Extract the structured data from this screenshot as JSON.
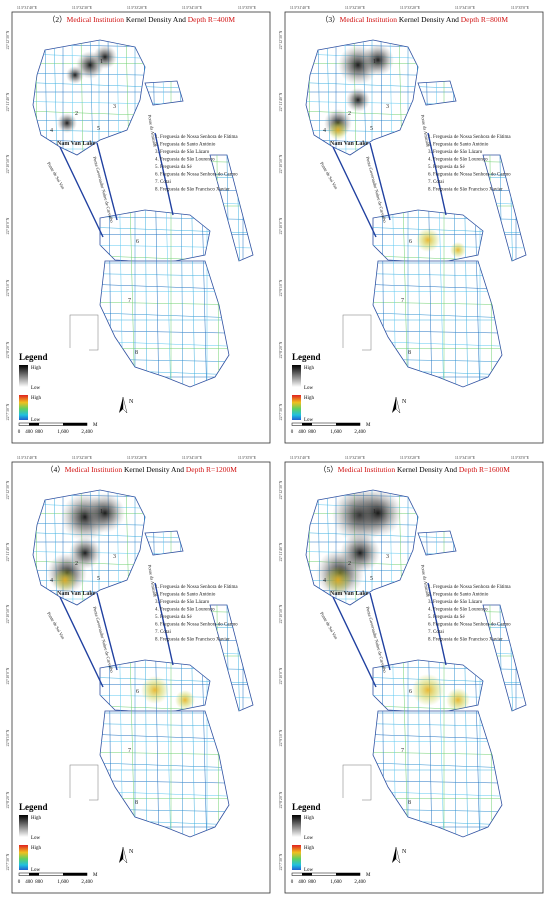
{
  "panels": [
    {
      "number": "（2）",
      "title_red_1": "Medical Institution",
      "title_black": " Kernel Density And ",
      "title_red_2": "Depth R=400M"
    },
    {
      "number": "（3）",
      "title_red_1": "Medical Institution",
      "title_black": " Kernel Density And ",
      "title_red_2": "Depth R=800M"
    },
    {
      "number": "（4）",
      "title_red_1": "Medical Institution",
      "title_black": " Kernel Density And ",
      "title_red_2": "Depth R=1200M"
    },
    {
      "number": "（5）",
      "title_red_1": "Medical Institution",
      "title_black": " Kernel Density And ",
      "title_red_2": "Depth R=1600M"
    }
  ],
  "longitudes": [
    "113°31'40\"E",
    "113°32'30\"E",
    "113°33'20\"E",
    "113°34'10\"E",
    "113°35'0\"E"
  ],
  "latitudes": [
    "22°12'30\"N",
    "22°11'40\"N",
    "22°10'50\"N",
    "22°10'0\"N",
    "22°9'10\"N",
    "22°8'20\"N",
    "22°7'30\"N"
  ],
  "parishes": [
    "1. Freguesia de Nossa Senhora de Fátima",
    "2. Freguesia de Santo António",
    "3. Freguesia de São Lázaro",
    "4. Freguesia de São Lourenço",
    "5. Freguesia da Sé",
    "6. Freguesia de Nossa Senhora do Carmo",
    "7. Cotai",
    "8. Freguesia de São Francisco Xavier"
  ],
  "map_labels": {
    "lake": "Nam Van Lake",
    "bridge_1": "Ponte da Amizade",
    "bridge_2": "Ponte Governador Nobre de Carvalho",
    "bridge_3": "Ponte de Sai Van",
    "numbers": [
      "1",
      "2",
      "3",
      "4",
      "5",
      "6",
      "7",
      "8"
    ]
  },
  "legend": {
    "title": "Legend",
    "high_1": "High",
    "low_1": "Low",
    "high_2": "High",
    "low_2": "Low"
  },
  "north": "N",
  "scale": {
    "ticks": [
      "0",
      "400",
      "800",
      "1,600",
      "2,400"
    ],
    "unit": "M"
  }
}
